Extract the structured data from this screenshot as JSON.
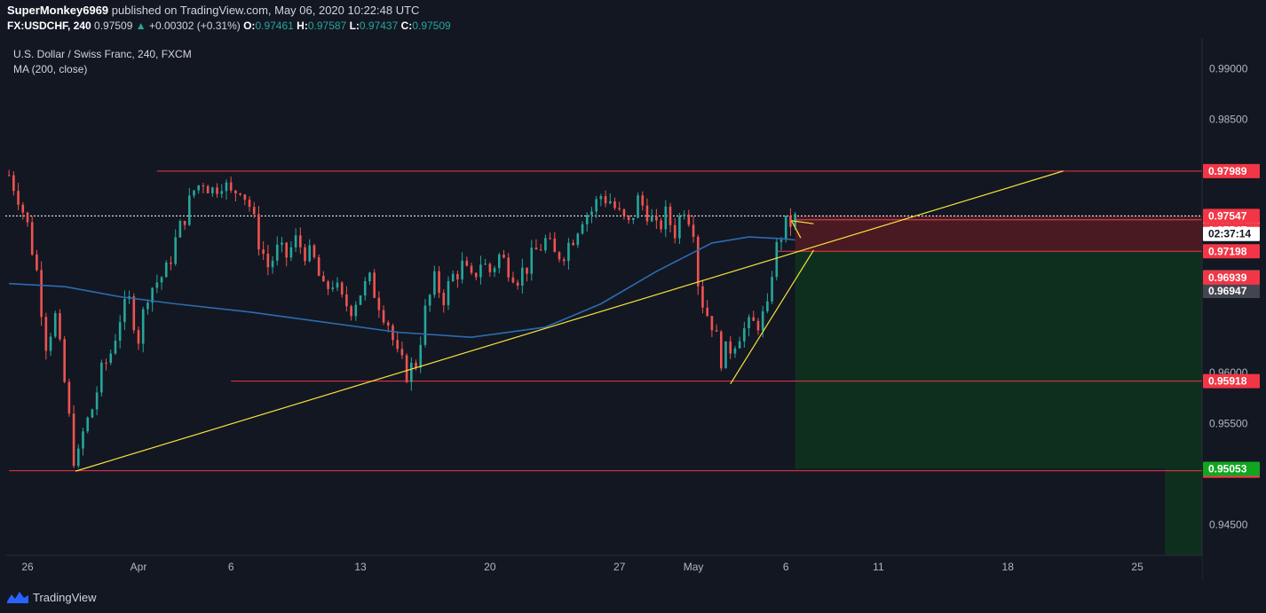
{
  "header": {
    "author": "SuperMonkey6969",
    "published_text": "published on TradingView.com, May 06, 2020 10:22:48 UTC",
    "symbol": "FX:USDCHF, 240",
    "last": "0.97509",
    "change_arrow": "▲",
    "change": "+0.00302 (+0.31%)",
    "o_label": "O:",
    "o_value": "0.97461",
    "h_label": "H:",
    "h_value": "0.97587",
    "l_label": "L:",
    "l_value": "0.97437",
    "c_label": "C:",
    "c_value": "0.97509"
  },
  "legend": {
    "instrument": "U.S. Dollar / Swiss Franc, 240, FXCM",
    "indicator": "MA (200, close)"
  },
  "footer": {
    "brand": "TradingView"
  },
  "colors": {
    "background": "#131722",
    "up": "#26a69a",
    "down": "#ef5350",
    "ma": "#2b6cb0",
    "level": "#f23645",
    "trend": "#f7e33b",
    "risk_zone": "#4a1a22",
    "reward_zone": "#0f2f1e"
  },
  "chart_data": {
    "type": "candlestick",
    "title": "U.S. Dollar / Swiss Franc, 240, FXCM",
    "xlabel": "",
    "ylabel": "",
    "ylim": [
      0.942,
      0.993
    ],
    "grid": false,
    "x_ticks": [
      {
        "label": "26",
        "day": -6
      },
      {
        "label": "Apr",
        "day": 0
      },
      {
        "label": "6",
        "day": 5
      },
      {
        "label": "13",
        "day": 12
      },
      {
        "label": "20",
        "day": 19
      },
      {
        "label": "27",
        "day": 26
      },
      {
        "label": "May",
        "day": 30
      },
      {
        "label": "6",
        "day": 35
      },
      {
        "label": "11",
        "day": 40
      },
      {
        "label": "18",
        "day": 47
      },
      {
        "label": "25",
        "day": 54
      }
    ],
    "y_ticks": [
      {
        "label": "0.99000",
        "value": 0.99
      },
      {
        "label": "0.98500",
        "value": 0.985
      },
      {
        "label": "0.96000",
        "value": 0.96
      },
      {
        "label": "0.95500",
        "value": 0.955
      },
      {
        "label": "0.94500",
        "value": 0.945
      }
    ],
    "price_path": [
      {
        "day": -7,
        "price": 0.9795
      },
      {
        "day": -6.5,
        "price": 0.9775
      },
      {
        "day": -6,
        "price": 0.9745
      },
      {
        "day": -5.5,
        "price": 0.97
      },
      {
        "day": -5,
        "price": 0.963
      },
      {
        "day": -4.5,
        "price": 0.9655
      },
      {
        "day": -4,
        "price": 0.959
      },
      {
        "day": -3.4,
        "price": 0.9503
      },
      {
        "day": -3,
        "price": 0.954
      },
      {
        "day": -2.5,
        "price": 0.9565
      },
      {
        "day": -2,
        "price": 0.96
      },
      {
        "day": -1.5,
        "price": 0.962
      },
      {
        "day": -1,
        "price": 0.9655
      },
      {
        "day": -0.5,
        "price": 0.967
      },
      {
        "day": 0,
        "price": 0.9635
      },
      {
        "day": 0.5,
        "price": 0.968
      },
      {
        "day": 1,
        "price": 0.969
      },
      {
        "day": 1.5,
        "price": 0.97
      },
      {
        "day": 2,
        "price": 0.973
      },
      {
        "day": 2.5,
        "price": 0.9755
      },
      {
        "day": 3,
        "price": 0.978
      },
      {
        "day": 3.5,
        "price": 0.979
      },
      {
        "day": 4,
        "price": 0.978
      },
      {
        "day": 4.5,
        "price": 0.979
      },
      {
        "day": 5,
        "price": 0.9775
      },
      {
        "day": 5.5,
        "price": 0.9785
      },
      {
        "day": 6,
        "price": 0.9765
      },
      {
        "day": 6.5,
        "price": 0.973
      },
      {
        "day": 7,
        "price": 0.9705
      },
      {
        "day": 7.5,
        "price": 0.972
      },
      {
        "day": 8,
        "price": 0.9715
      },
      {
        "day": 8.5,
        "price": 0.973
      },
      {
        "day": 9,
        "price": 0.972
      },
      {
        "day": 9.5,
        "price": 0.971
      },
      {
        "day": 10,
        "price": 0.968
      },
      {
        "day": 10.5,
        "price": 0.969
      },
      {
        "day": 11,
        "price": 0.967
      },
      {
        "day": 11.5,
        "price": 0.9665
      },
      {
        "day": 12,
        "price": 0.968
      },
      {
        "day": 12.5,
        "price": 0.969
      },
      {
        "day": 13,
        "price": 0.967
      },
      {
        "day": 13.5,
        "price": 0.965
      },
      {
        "day": 14,
        "price": 0.9615
      },
      {
        "day": 14.5,
        "price": 0.96
      },
      {
        "day": 15,
        "price": 0.961
      },
      {
        "day": 15.5,
        "price": 0.966
      },
      {
        "day": 16,
        "price": 0.969
      },
      {
        "day": 16.5,
        "price": 0.9675
      },
      {
        "day": 17,
        "price": 0.9695
      },
      {
        "day": 17.5,
        "price": 0.9705
      },
      {
        "day": 18,
        "price": 0.969
      },
      {
        "day": 18.5,
        "price": 0.971
      },
      {
        "day": 19,
        "price": 0.97
      },
      {
        "day": 19.5,
        "price": 0.9715
      },
      {
        "day": 20,
        "price": 0.9705
      },
      {
        "day": 20.5,
        "price": 0.9695
      },
      {
        "day": 21,
        "price": 0.9705
      },
      {
        "day": 21.5,
        "price": 0.972
      },
      {
        "day": 22,
        "price": 0.973
      },
      {
        "day": 22.5,
        "price": 0.9715
      },
      {
        "day": 23,
        "price": 0.972
      },
      {
        "day": 23.5,
        "price": 0.9735
      },
      {
        "day": 24,
        "price": 0.9755
      },
      {
        "day": 24.5,
        "price": 0.976
      },
      {
        "day": 25,
        "price": 0.9775
      },
      {
        "day": 25.5,
        "price": 0.977
      },
      {
        "day": 26,
        "price": 0.9755
      },
      {
        "day": 26.5,
        "price": 0.9745
      },
      {
        "day": 27,
        "price": 0.977
      },
      {
        "day": 27.5,
        "price": 0.976
      },
      {
        "day": 28,
        "price": 0.974
      },
      {
        "day": 28.5,
        "price": 0.9755
      },
      {
        "day": 29,
        "price": 0.974
      },
      {
        "day": 29.5,
        "price": 0.9765
      },
      {
        "day": 30,
        "price": 0.9745
      },
      {
        "day": 30.3,
        "price": 0.968
      },
      {
        "day": 30.7,
        "price": 0.966
      },
      {
        "day": 31,
        "price": 0.965
      },
      {
        "day": 31.5,
        "price": 0.9615
      },
      {
        "day": 32,
        "price": 0.9625
      },
      {
        "day": 32.5,
        "price": 0.964
      },
      {
        "day": 33,
        "price": 0.9645
      },
      {
        "day": 33.5,
        "price": 0.965
      },
      {
        "day": 34,
        "price": 0.966
      },
      {
        "day": 34.3,
        "price": 0.971
      },
      {
        "day": 34.7,
        "price": 0.9735
      },
      {
        "day": 35,
        "price": 0.9745
      },
      {
        "day": 35.5,
        "price": 0.9751
      }
    ],
    "ma_200": [
      {
        "day": -7,
        "price": 0.9688
      },
      {
        "day": -4,
        "price": 0.9685
      },
      {
        "day": -1,
        "price": 0.9675
      },
      {
        "day": 2,
        "price": 0.9668
      },
      {
        "day": 6,
        "price": 0.966
      },
      {
        "day": 10,
        "price": 0.965
      },
      {
        "day": 14,
        "price": 0.964
      },
      {
        "day": 18,
        "price": 0.9635
      },
      {
        "day": 22,
        "price": 0.9645
      },
      {
        "day": 25,
        "price": 0.9668
      },
      {
        "day": 28,
        "price": 0.97
      },
      {
        "day": 31,
        "price": 0.9728
      },
      {
        "day": 33,
        "price": 0.9734
      },
      {
        "day": 35,
        "price": 0.9732
      },
      {
        "day": 35.5,
        "price": 0.9731
      }
    ],
    "levels": [
      {
        "value": 0.97989,
        "label": "0.97989",
        "kind": "red",
        "from_day": 1
      },
      {
        "value": 0.97509,
        "label": "0.97509",
        "kind": "price",
        "from_day": 35.5
      },
      {
        "value": 0.97198,
        "label": "0.97198",
        "kind": "red",
        "from_day": 34.5
      },
      {
        "value": 0.95918,
        "label": "0.95918",
        "kind": "red",
        "from_day": 5
      },
      {
        "value": 0.95034,
        "label": "0.95034",
        "kind": "red",
        "from_day": -7
      }
    ],
    "extra_labels": [
      {
        "value": 0.97547,
        "label": "0.97547",
        "kind": "red"
      },
      {
        "value": 0.97547,
        "label": "0.97547",
        "kind": "red-lower"
      },
      {
        "value": 0.97509,
        "label": "02:37:14",
        "kind": "countdown"
      },
      {
        "value": 0.96947,
        "label": "0.96947",
        "kind": "gray"
      },
      {
        "value": 0.96947,
        "label": "0.96947",
        "kind": "gray-lower"
      },
      {
        "value": 0.96939,
        "label": "0.96939",
        "kind": "red"
      },
      {
        "value": 0.95053,
        "label": "0.95053",
        "kind": "green"
      }
    ],
    "current_price_line": 0.97547,
    "trendlines": [
      {
        "from": {
          "day": -3.4,
          "price": 0.9503
        },
        "to": {
          "day": 50.0,
          "price": 0.9799
        }
      },
      {
        "from": {
          "day": 32,
          "price": 0.9589
        },
        "to": {
          "day": 36.5,
          "price": 0.9721
        }
      },
      {
        "from": {
          "day": 35.3,
          "price": 0.975
        },
        "to": {
          "day": 36.5,
          "price": 0.9747
        }
      },
      {
        "from": {
          "day": 35.3,
          "price": 0.975
        },
        "to": {
          "day": 35.8,
          "price": 0.9733
        }
      }
    ],
    "position": {
      "entry": 0.97198,
      "stop": 0.97547,
      "target": 0.95053,
      "start_day": 35.5,
      "end_day": 55.5
    }
  }
}
